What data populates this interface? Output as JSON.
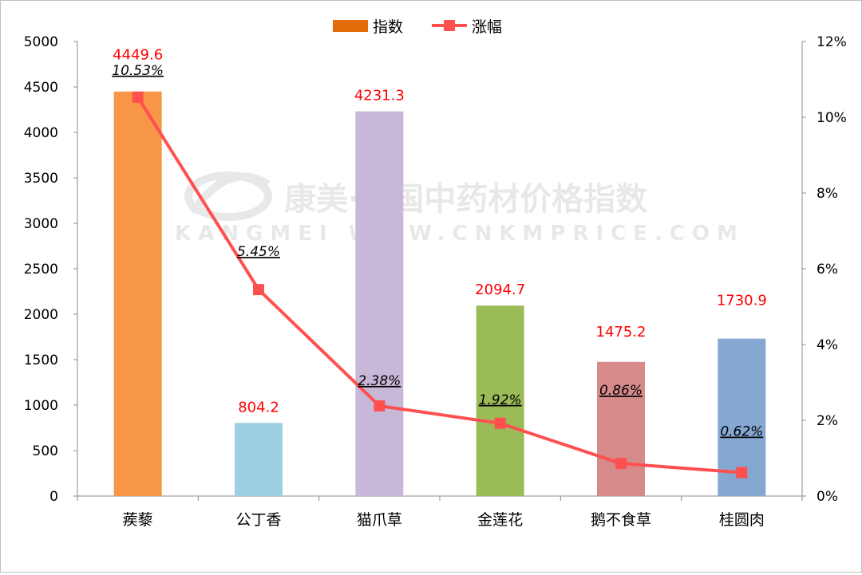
{
  "chart_data": {
    "type": "bar",
    "categories": [
      "蒺藜",
      "公丁香",
      "猫爪草",
      "金莲花",
      "鹅不食草",
      "桂圆肉"
    ],
    "series": [
      {
        "name": "指数",
        "type": "bar",
        "axis": "left",
        "values": [
          4449.6,
          804.2,
          4231.3,
          2094.7,
          1475.2,
          1730.9
        ],
        "value_labels": [
          "4449.6",
          "804.2",
          "4231.3",
          "2094.7",
          "1475.2",
          "1730.9"
        ],
        "colors": [
          "#f79646",
          "#9dcfe0",
          "#c8b8d8",
          "#9bbb59",
          "#d68a8a",
          "#85a8d2"
        ],
        "legend_color": "#e36c0a"
      },
      {
        "name": "涨幅",
        "type": "line",
        "axis": "right",
        "values": [
          10.53,
          5.45,
          2.38,
          1.92,
          0.86,
          0.62
        ],
        "value_labels": [
          "10.53%",
          "5.45%",
          "2.38%",
          "1.92%",
          "0.86%",
          "0.62%"
        ],
        "color": "#ff5050"
      }
    ],
    "y_left": {
      "min": 0,
      "max": 5000,
      "ticks": [
        "0",
        "500",
        "1000",
        "1500",
        "2000",
        "2500",
        "3000",
        "3500",
        "4000",
        "4500",
        "5000"
      ]
    },
    "y_right": {
      "min": 0,
      "max": 12,
      "ticks": [
        "0%",
        "2%",
        "4%",
        "6%",
        "8%",
        "10%",
        "12%"
      ]
    },
    "legend_position": "top-center",
    "grid": false,
    "title": "",
    "xlabel": "",
    "ylabel": ""
  },
  "watermark": {
    "line1": "康美·中国中药材价格指数",
    "line2": "KANGMEI WWW.CNKMPRICE.COM"
  }
}
